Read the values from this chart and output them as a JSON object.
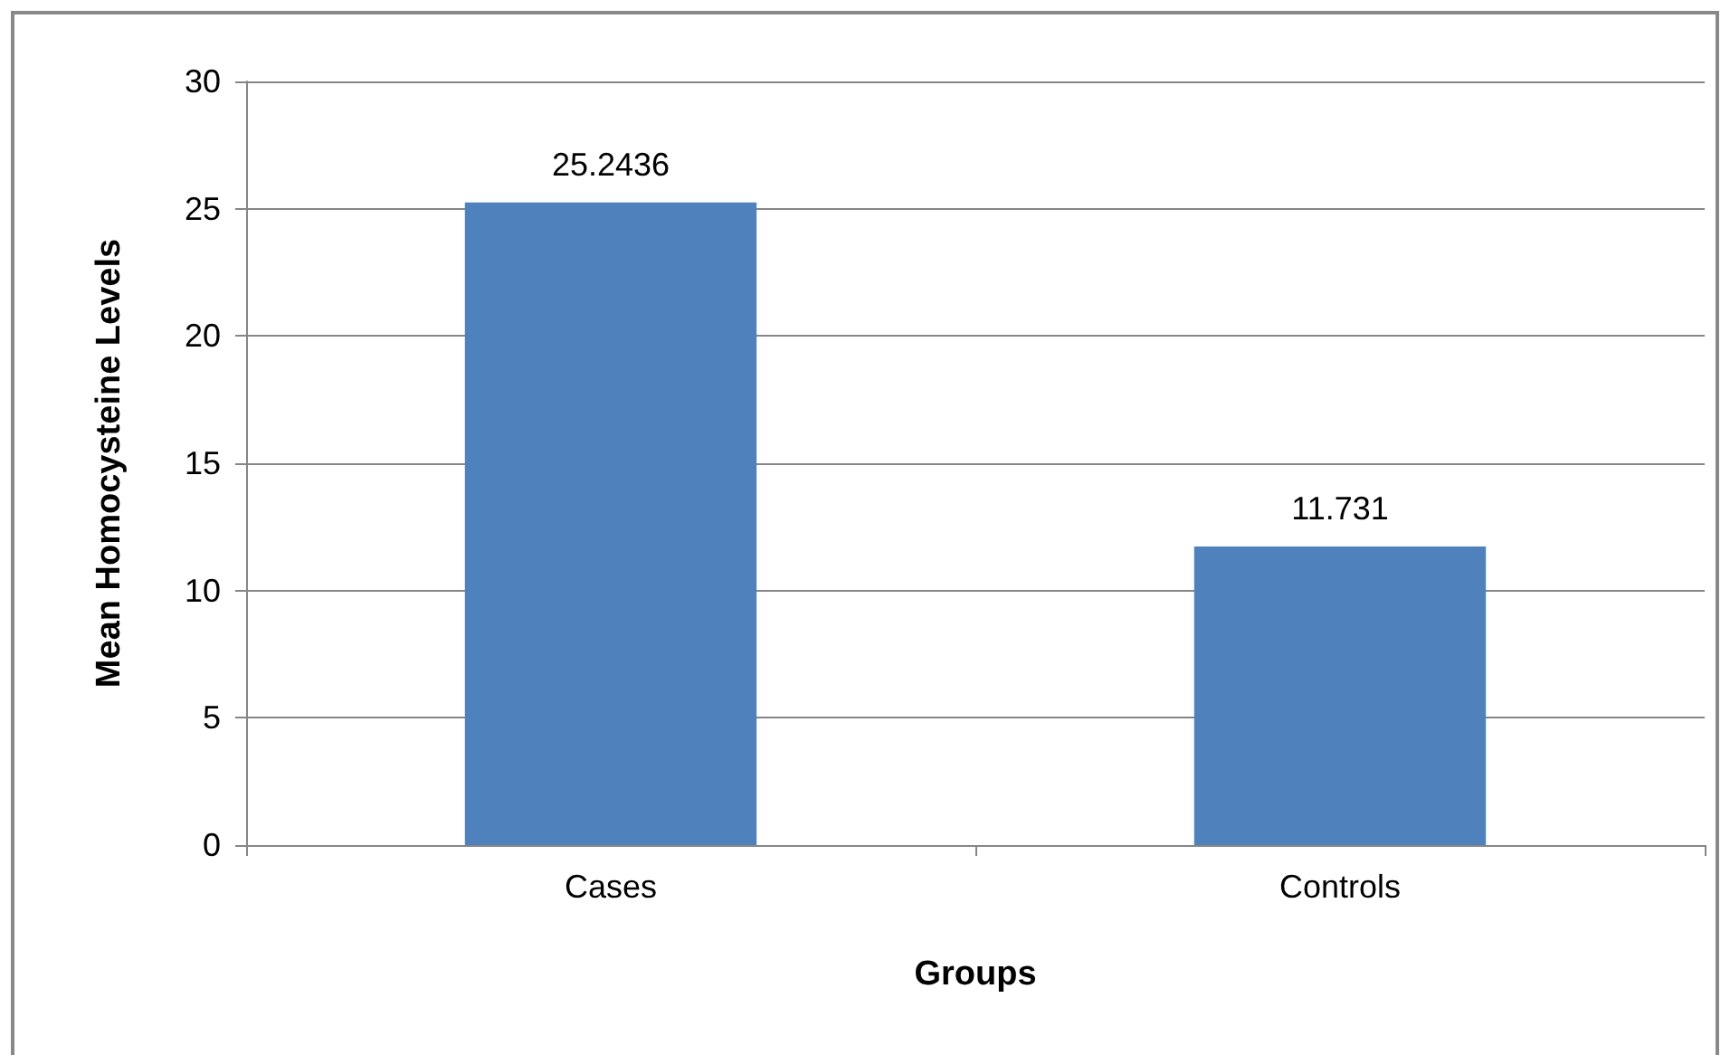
{
  "chart_data": {
    "type": "bar",
    "xlabel": "Groups",
    "ylabel": "Mean Homocysteine Levels",
    "categories": [
      "Cases",
      "Controls"
    ],
    "values": [
      25.2436,
      11.731
    ],
    "color": "#4f81bd",
    "ylim": [
      0,
      30
    ],
    "yticks": [
      0,
      5,
      10,
      15,
      20,
      25,
      30
    ],
    "grid": "y",
    "data_labels": true
  }
}
